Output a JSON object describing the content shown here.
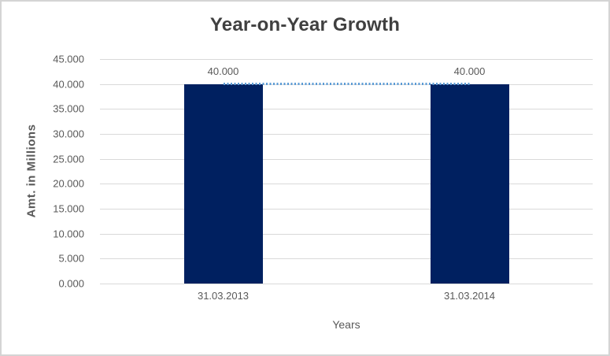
{
  "chart_data": {
    "type": "bar",
    "title": "Year-on-Year Growth",
    "xlabel": "Years",
    "ylabel": "Amt. in Millions",
    "categories": [
      "31.03.2013",
      "31.03.2014"
    ],
    "series": [
      {
        "name": "amount-bars",
        "type": "bar",
        "values": [
          40,
          40
        ],
        "value_labels": [
          "40.000",
          "40.000"
        ],
        "color": "#002060"
      },
      {
        "name": "trend-line",
        "type": "line",
        "style": "dotted",
        "values": [
          40,
          40
        ],
        "color": "#5b9bd5"
      }
    ],
    "ylim": [
      0,
      45
    ],
    "ytick_step": 5,
    "ytick_labels": [
      "0.000",
      "5.000",
      "10.000",
      "15.000",
      "20.000",
      "25.000",
      "30.000",
      "35.000",
      "40.000",
      "45.000"
    ],
    "grid": true,
    "legend": "none",
    "gridline_color": "#d9d9d9",
    "title_color": "#404040",
    "axis_label_color": "#595959",
    "frame_border_color": "#d4d4d4"
  }
}
